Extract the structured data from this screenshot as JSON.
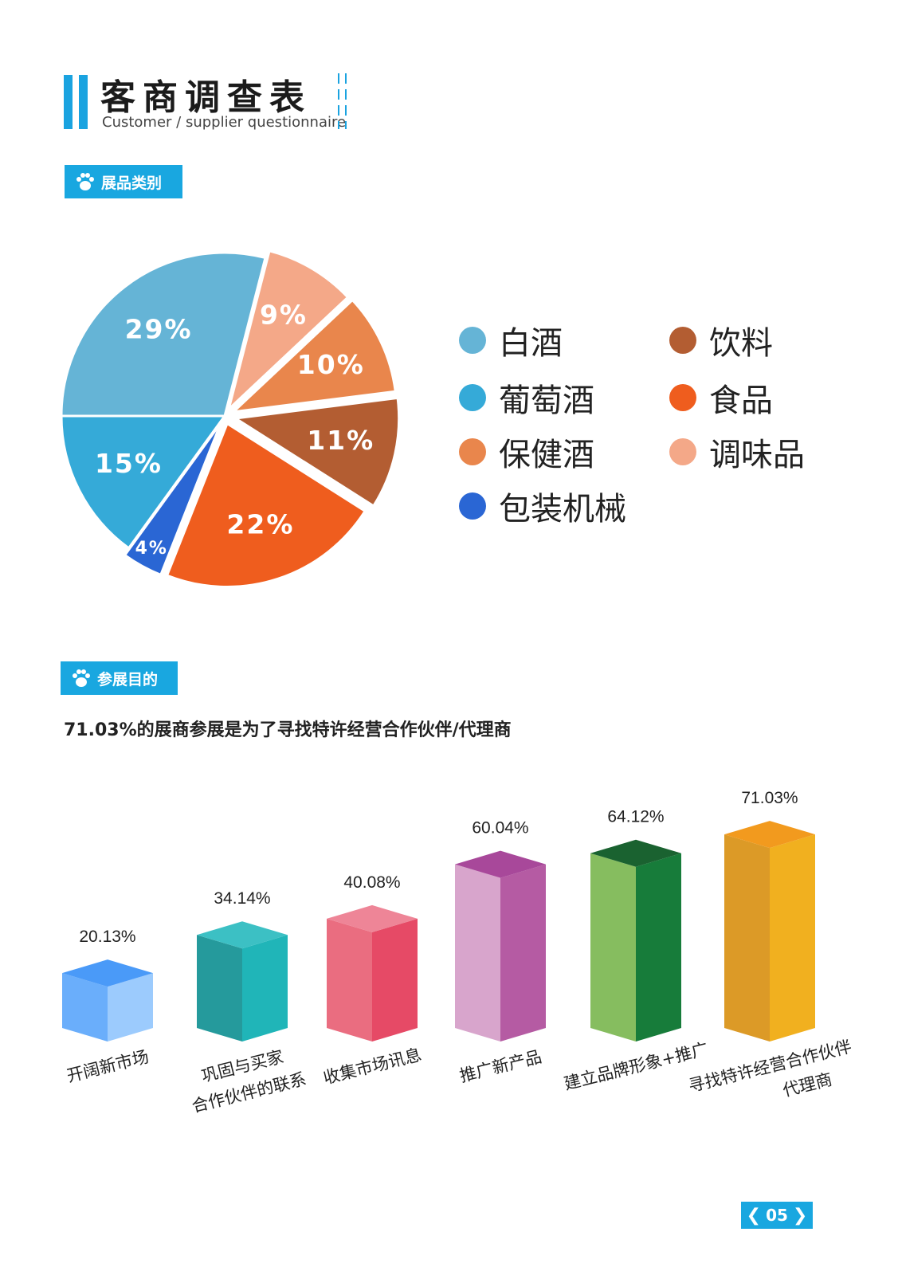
{
  "header": {
    "title": "客商调查表",
    "subtitle": "Customer / supplier questionnaire"
  },
  "section1": {
    "label": "展品类别"
  },
  "section2": {
    "label": "参展目的",
    "headline": "71.03%的展商参展是为了寻找特许经营合作伙伴/代理商"
  },
  "page": {
    "number": "05"
  },
  "colors": {
    "accent": "#1aa3e0",
    "baijiu": "#65b4d6",
    "wine": "#35aad8",
    "health_wine": "#e9864c",
    "packaging": "#2a66d4",
    "beverage": "#b35d32",
    "food": "#ef5d1e",
    "seasoning": "#f4a888"
  },
  "chart_data": [
    {
      "type": "pie",
      "legend_position": "right",
      "slices": [
        {
          "name": "白酒",
          "value": 29,
          "label": "29%",
          "color": "#65b4d6"
        },
        {
          "name": "调味品",
          "value": 9,
          "label": "9%",
          "color": "#f4a888"
        },
        {
          "name": "保健酒",
          "value": 10,
          "label": "10%",
          "color": "#e9864c"
        },
        {
          "name": "饮料",
          "value": 11,
          "label": "11%",
          "color": "#b35d32"
        },
        {
          "name": "食品",
          "value": 22,
          "label": "22%",
          "color": "#ef5d1e"
        },
        {
          "name": "包装机械",
          "value": 4,
          "label": "4%",
          "color": "#2a66d4"
        },
        {
          "name": "葡萄酒",
          "value": 15,
          "label": "15%",
          "color": "#35aad8"
        }
      ],
      "legend": [
        {
          "name": "白酒",
          "color": "#65b4d6"
        },
        {
          "name": "葡萄酒",
          "color": "#35aad8"
        },
        {
          "name": "保健酒",
          "color": "#e9864c"
        },
        {
          "name": "包装机械",
          "color": "#2a66d4"
        },
        {
          "name": "饮料",
          "color": "#b35d32"
        },
        {
          "name": "食品",
          "color": "#ef5d1e"
        },
        {
          "name": "调味品",
          "color": "#f4a888"
        }
      ]
    },
    {
      "type": "bar",
      "style": "3d",
      "grid": false,
      "categories": [
        [
          "开阔新市场"
        ],
        [
          "巩固与买家",
          "合作伙伴的联系"
        ],
        [
          "收集市场讯息"
        ],
        [
          "推广新产品"
        ],
        [
          "建立品牌形象+推广"
        ],
        [
          "寻找特许经营合作伙伴",
          "代理商"
        ]
      ],
      "values": [
        20.13,
        34.14,
        40.08,
        60.04,
        64.12,
        71.03
      ],
      "value_labels": [
        "20.13%",
        "34.14%",
        "40.08%",
        "60.04%",
        "64.12%",
        "71.03%"
      ],
      "colors": [
        {
          "front": "#6aaefb",
          "side": "#9ccbfd",
          "top": "#4a9af8"
        },
        {
          "front": "#259a9c",
          "side": "#20b5b8",
          "top": "#3cc0c4"
        },
        {
          "front": "#ea6d80",
          "side": "#e64a66",
          "top": "#ee8597"
        },
        {
          "front": "#d8a5cc",
          "side": "#b55ba3",
          "top": "#a8489a"
        },
        {
          "front": "#86bd5f",
          "side": "#177c3a",
          "top": "#1a6230"
        },
        {
          "front": "#dc9a27",
          "side": "#f1b01f",
          "top": "#f29a1e"
        }
      ],
      "ylim": [
        0,
        100
      ]
    }
  ]
}
